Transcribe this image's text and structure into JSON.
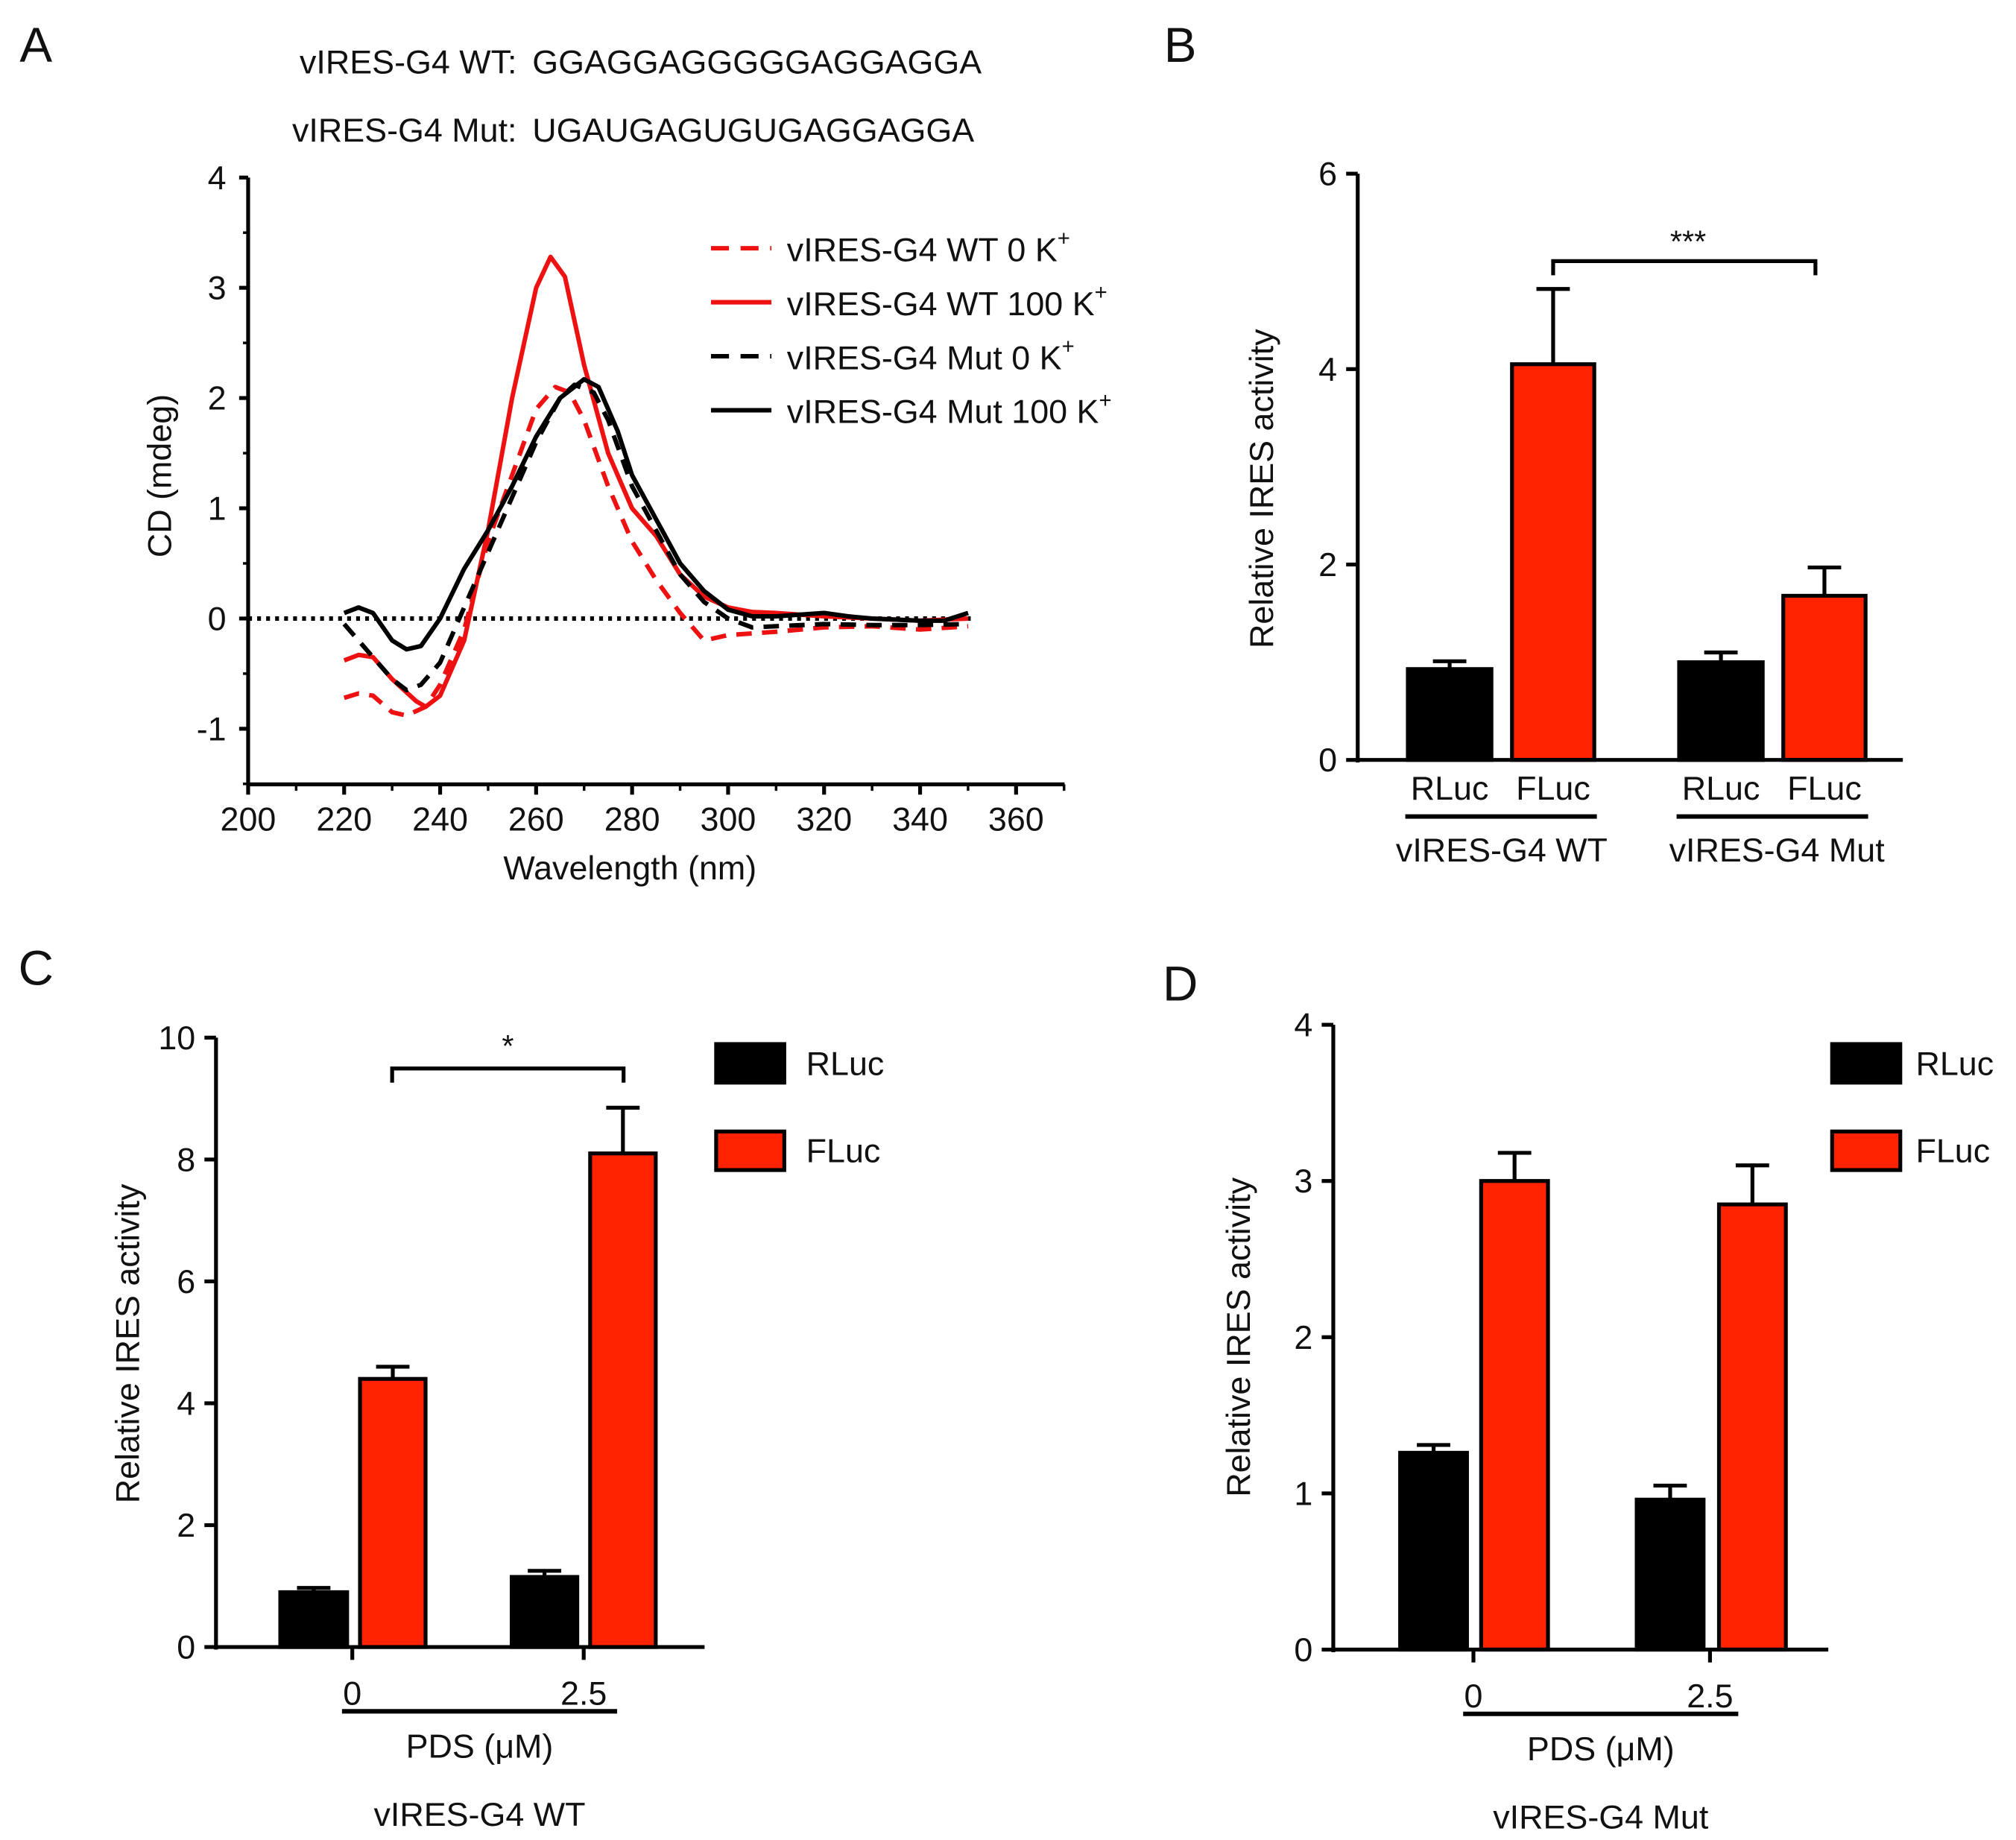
{
  "colors": {
    "red": "#ff2200",
    "red_line": "#ee1111",
    "black": "#000000"
  },
  "chart_data": [
    {
      "panel": "A",
      "type": "line",
      "sequences": [
        {
          "label": "vIRES-G4 WT:",
          "seq": "GGAGGAGGGGGAGGAGGA"
        },
        {
          "label": "vIRES-G4 Mut:",
          "seq": "UGAUGAGUGUGAGGAGGA"
        }
      ],
      "xlabel": "Wavelength (nm)",
      "ylabel": "CD (mdeg)",
      "xlim": [
        200,
        370
      ],
      "ylim": [
        -1.5,
        4
      ],
      "xticks": [
        200,
        220,
        240,
        260,
        280,
        300,
        320,
        340,
        360
      ],
      "yticks": [
        -1,
        0,
        1,
        2,
        3,
        4
      ],
      "legend_position": "top-right",
      "series": [
        {
          "name": "vIRES-G4 WT 0 K",
          "sup": "+",
          "color": "#ee1111",
          "dash": true,
          "x": [
            220,
            223,
            226,
            230,
            233,
            237,
            240,
            245,
            250,
            255,
            260,
            264,
            267,
            270,
            275,
            280,
            285,
            290,
            295,
            300,
            310,
            320,
            330,
            340,
            350
          ],
          "y": [
            -0.72,
            -0.68,
            -0.7,
            -0.85,
            -0.88,
            -0.8,
            -0.6,
            -0.1,
            0.7,
            1.3,
            1.9,
            2.1,
            2.05,
            1.8,
            1.2,
            0.7,
            0.35,
            0.05,
            -0.2,
            -0.15,
            -0.12,
            -0.08,
            -0.07,
            -0.1,
            -0.07
          ]
        },
        {
          "name": "vIRES-G4 WT 100 K",
          "sup": "+",
          "color": "#ee1111",
          "dash": false,
          "x": [
            220,
            223,
            226,
            230,
            235,
            237,
            240,
            245,
            250,
            255,
            260,
            263,
            266,
            270,
            275,
            280,
            285,
            290,
            295,
            300,
            305,
            310,
            320,
            330,
            340,
            350
          ],
          "y": [
            -0.38,
            -0.33,
            -0.35,
            -0.55,
            -0.75,
            -0.8,
            -0.7,
            -0.2,
            0.8,
            2.0,
            3.0,
            3.28,
            3.1,
            2.3,
            1.5,
            1.0,
            0.75,
            0.4,
            0.2,
            0.1,
            0.06,
            0.05,
            0.02,
            0.0,
            -0.02,
            0.0
          ]
        },
        {
          "name": "vIRES-G4 Mut 0 K",
          "sup": "+",
          "color": "#000000",
          "dash": true,
          "x": [
            220,
            225,
            230,
            233,
            236,
            240,
            245,
            250,
            255,
            260,
            265,
            268,
            272,
            275,
            280,
            285,
            290,
            295,
            300,
            305,
            310,
            320,
            330,
            340,
            350
          ],
          "y": [
            -0.05,
            -0.3,
            -0.55,
            -0.65,
            -0.6,
            -0.4,
            0.1,
            0.6,
            1.1,
            1.6,
            2.0,
            2.12,
            2.05,
            1.8,
            1.2,
            0.8,
            0.4,
            0.15,
            0.0,
            -0.08,
            -0.07,
            -0.05,
            -0.06,
            -0.06,
            -0.05
          ]
        },
        {
          "name": "vIRES-G4 Mut 100 K",
          "sup": "+",
          "color": "#000000",
          "dash": false,
          "x": [
            220,
            223,
            226,
            230,
            233,
            236,
            240,
            245,
            250,
            255,
            260,
            265,
            270,
            273,
            277,
            280,
            285,
            290,
            295,
            300,
            305,
            310,
            320,
            325,
            330,
            340,
            345,
            350
          ],
          "y": [
            0.05,
            0.1,
            0.05,
            -0.2,
            -0.28,
            -0.25,
            0.0,
            0.45,
            0.8,
            1.2,
            1.65,
            2.0,
            2.17,
            2.1,
            1.7,
            1.3,
            0.9,
            0.5,
            0.25,
            0.08,
            0.02,
            0.02,
            0.05,
            0.02,
            0.0,
            -0.02,
            -0.02,
            0.05
          ]
        }
      ]
    },
    {
      "panel": "B",
      "type": "bar",
      "ylabel": "Relative IRES activity",
      "ylim": [
        0,
        6
      ],
      "yticks": [
        0,
        2,
        4,
        6
      ],
      "bars": [
        {
          "label": "RLuc",
          "group": "vIRES-G4 WT",
          "value": 0.93,
          "err": 0.08,
          "series": "RLuc"
        },
        {
          "label": "FLuc",
          "group": "vIRES-G4 WT",
          "value": 4.05,
          "err": 0.77,
          "series": "FLuc"
        },
        {
          "label": "RLuc",
          "group": "vIRES-G4 Mut",
          "value": 1.0,
          "err": 0.1,
          "series": "RLuc"
        },
        {
          "label": "FLuc",
          "group": "vIRES-G4 Mut",
          "value": 1.68,
          "err": 0.29,
          "series": "FLuc"
        }
      ],
      "groups": [
        "vIRES-G4 WT",
        "vIRES-G4 Mut"
      ],
      "significance": {
        "between": [
          1,
          3
        ],
        "label": "***"
      }
    },
    {
      "panel": "C",
      "type": "bar",
      "ylabel": "Relative IRES activity",
      "ylim": [
        0,
        10
      ],
      "yticks": [
        0,
        2,
        4,
        6,
        8,
        10
      ],
      "categories": [
        "0",
        "2.5"
      ],
      "xlabel": "PDS (μM)",
      "subtitle": "vIRES-G4 WT",
      "series": [
        {
          "name": "RLuc",
          "values": [
            0.9,
            1.15
          ],
          "err": [
            0.07,
            0.1
          ]
        },
        {
          "name": "FLuc",
          "values": [
            4.4,
            8.1
          ],
          "err": [
            0.2,
            0.75
          ]
        }
      ],
      "legend_position": "right",
      "significance": {
        "between": [
          "FLuc 0",
          "FLuc 2.5"
        ],
        "label": "*"
      }
    },
    {
      "panel": "D",
      "type": "bar",
      "ylabel": "Relative IRES activity",
      "ylim": [
        0,
        4
      ],
      "yticks": [
        0,
        1,
        2,
        3,
        4
      ],
      "categories": [
        "0",
        "2.5"
      ],
      "xlabel": "PDS (μM)",
      "subtitle": "vIRES-G4 Mut",
      "series": [
        {
          "name": "RLuc",
          "values": [
            1.26,
            0.96
          ],
          "err": [
            0.05,
            0.09
          ]
        },
        {
          "name": "FLuc",
          "values": [
            3.0,
            2.85
          ],
          "err": [
            0.18,
            0.25
          ]
        }
      ],
      "legend_position": "right"
    }
  ]
}
